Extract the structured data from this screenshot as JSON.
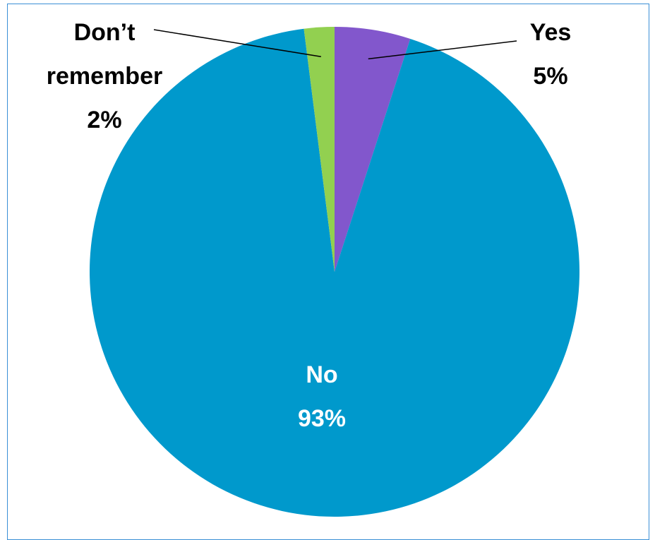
{
  "chart_data": {
    "type": "pie",
    "title": "",
    "slices": [
      {
        "label": "Yes",
        "percent_text": "5%",
        "value": 5,
        "color": "#8257cc",
        "label_color": "#000000"
      },
      {
        "label": "No",
        "percent_text": "93%",
        "value": 93,
        "color": "#0099cc",
        "label_color": "#ffffff"
      },
      {
        "label": "Don’t remember",
        "label_lines": [
          "Don’t",
          "remember"
        ],
        "percent_text": "2%",
        "value": 2,
        "color": "#92d050",
        "label_color": "#000000"
      }
    ],
    "start_angle_deg": 0,
    "direction": "clockwise",
    "legend": "none",
    "label_style": "category name and percentage"
  },
  "frame": {
    "border_color": "#3a8fd6"
  }
}
